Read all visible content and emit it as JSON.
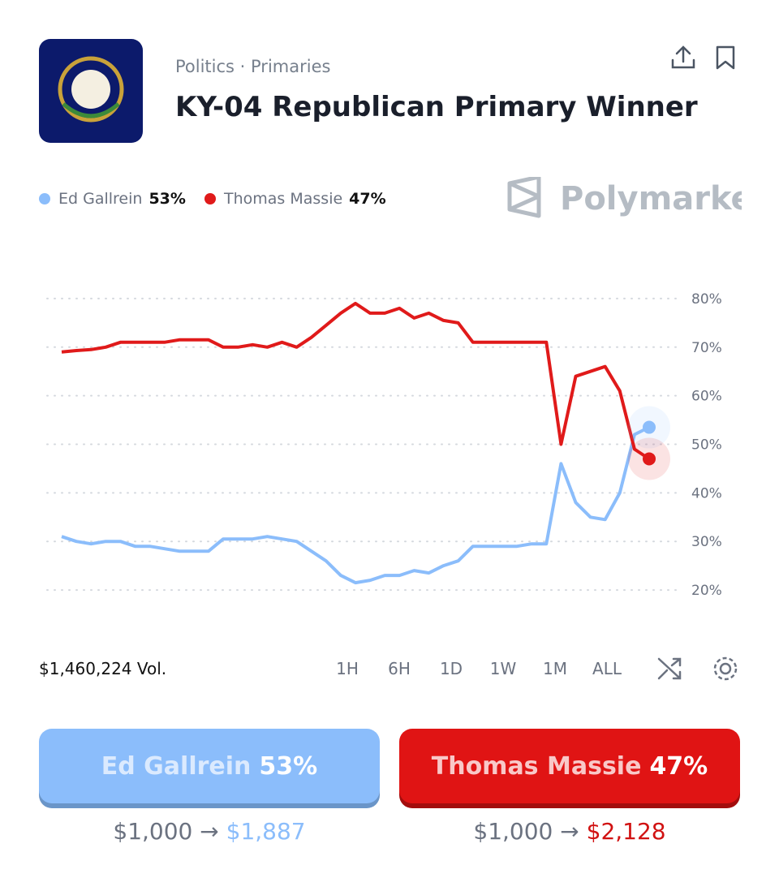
{
  "header": {
    "breadcrumb": "Politics · Primaries",
    "title": "KY-04 Republican Primary Winner",
    "brand": "Polymarket"
  },
  "chart_data": {
    "type": "line",
    "series": [
      {
        "name": "Ed Gallrein",
        "color": "#8bbdfb",
        "values": [
          31,
          30,
          29.5,
          30,
          30,
          29,
          29,
          28.5,
          28,
          28,
          28,
          30.5,
          30.5,
          30.5,
          31,
          30.5,
          30,
          28,
          26,
          23,
          21.5,
          22,
          23,
          23,
          24,
          23.5,
          25,
          26,
          29,
          29,
          29,
          29,
          29.5,
          29.5,
          46,
          38,
          35,
          34.5,
          40,
          52,
          53.5
        ]
      },
      {
        "name": "Thomas Massie",
        "color": "#e01a1a",
        "values": [
          69,
          69.3,
          69.5,
          70,
          71,
          71,
          71,
          71,
          71.5,
          71.5,
          71.5,
          70,
          70,
          70.5,
          70,
          71,
          70,
          72,
          74.5,
          77,
          79,
          77,
          77,
          78,
          76,
          77,
          75.5,
          75,
          71,
          71,
          71,
          71,
          71,
          71,
          50,
          64,
          65,
          66,
          61,
          49,
          47
        ]
      }
    ],
    "ylim": [
      15,
      85
    ],
    "yticks": [
      {
        "value": 20,
        "label": "20%"
      },
      {
        "value": 30,
        "label": "30%"
      },
      {
        "value": 40,
        "label": "40%"
      },
      {
        "value": 50,
        "label": "50%"
      },
      {
        "value": 60,
        "label": "60%"
      },
      {
        "value": 70,
        "label": "70%"
      },
      {
        "value": 80,
        "label": "80%"
      }
    ],
    "grid": true
  },
  "legend_values": [
    "53%",
    "47%"
  ],
  "volume": "$1,460,224 Vol.",
  "ranges": [
    "1H",
    "6H",
    "1D",
    "1W",
    "1M",
    "ALL"
  ],
  "outcomes": [
    {
      "name": "Ed Gallrein",
      "chance": "53%",
      "stake": "$1,000",
      "payout": "$1,887"
    },
    {
      "name": "Thomas Massie",
      "chance": "47%",
      "stake": "$1,000",
      "payout": "$2,128"
    }
  ]
}
